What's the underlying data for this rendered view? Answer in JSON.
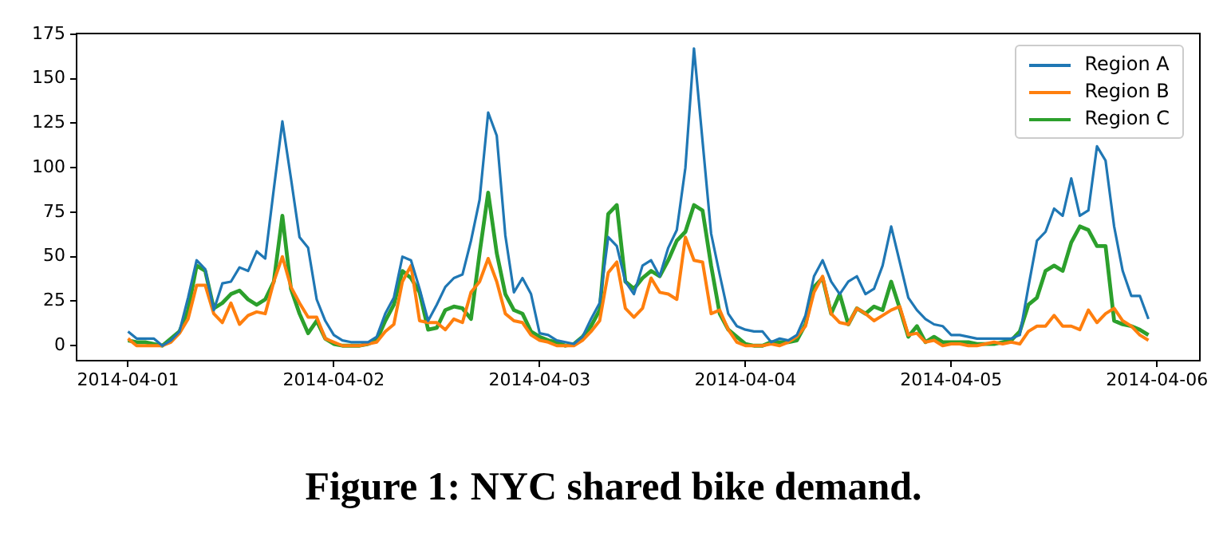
{
  "chart_data": {
    "type": "line",
    "annotations": [
      "Figure 1: NYC shared bike demand."
    ],
    "x": [
      "2014-04-01T00:00",
      "2014-04-01T01:00",
      "2014-04-01T02:00",
      "2014-04-01T03:00",
      "2014-04-01T04:00",
      "2014-04-01T05:00",
      "2014-04-01T06:00",
      "2014-04-01T07:00",
      "2014-04-01T08:00",
      "2014-04-01T09:00",
      "2014-04-01T10:00",
      "2014-04-01T11:00",
      "2014-04-01T12:00",
      "2014-04-01T13:00",
      "2014-04-01T14:00",
      "2014-04-01T15:00",
      "2014-04-01T16:00",
      "2014-04-01T17:00",
      "2014-04-01T18:00",
      "2014-04-01T19:00",
      "2014-04-01T20:00",
      "2014-04-01T21:00",
      "2014-04-01T22:00",
      "2014-04-01T23:00",
      "2014-04-02T00:00",
      "2014-04-02T01:00",
      "2014-04-02T02:00",
      "2014-04-02T03:00",
      "2014-04-02T04:00",
      "2014-04-02T05:00",
      "2014-04-02T06:00",
      "2014-04-02T07:00",
      "2014-04-02T08:00",
      "2014-04-02T09:00",
      "2014-04-02T10:00",
      "2014-04-02T11:00",
      "2014-04-02T12:00",
      "2014-04-02T13:00",
      "2014-04-02T14:00",
      "2014-04-02T15:00",
      "2014-04-02T16:00",
      "2014-04-02T17:00",
      "2014-04-02T18:00",
      "2014-04-02T19:00",
      "2014-04-02T20:00",
      "2014-04-02T21:00",
      "2014-04-02T22:00",
      "2014-04-02T23:00",
      "2014-04-03T00:00",
      "2014-04-03T01:00",
      "2014-04-03T02:00",
      "2014-04-03T03:00",
      "2014-04-03T04:00",
      "2014-04-03T05:00",
      "2014-04-03T06:00",
      "2014-04-03T07:00",
      "2014-04-03T08:00",
      "2014-04-03T09:00",
      "2014-04-03T10:00",
      "2014-04-03T11:00",
      "2014-04-03T12:00",
      "2014-04-03T13:00",
      "2014-04-03T14:00",
      "2014-04-03T15:00",
      "2014-04-03T16:00",
      "2014-04-03T17:00",
      "2014-04-03T18:00",
      "2014-04-03T19:00",
      "2014-04-03T20:00",
      "2014-04-03T21:00",
      "2014-04-03T22:00",
      "2014-04-03T23:00",
      "2014-04-04T00:00",
      "2014-04-04T01:00",
      "2014-04-04T02:00",
      "2014-04-04T03:00",
      "2014-04-04T04:00",
      "2014-04-04T05:00",
      "2014-04-04T06:00",
      "2014-04-04T07:00",
      "2014-04-04T08:00",
      "2014-04-04T09:00",
      "2014-04-04T10:00",
      "2014-04-04T11:00",
      "2014-04-04T12:00",
      "2014-04-04T13:00",
      "2014-04-04T14:00",
      "2014-04-04T15:00",
      "2014-04-04T16:00",
      "2014-04-04T17:00",
      "2014-04-04T18:00",
      "2014-04-04T19:00",
      "2014-04-04T20:00",
      "2014-04-04T21:00",
      "2014-04-04T22:00",
      "2014-04-04T23:00",
      "2014-04-05T00:00",
      "2014-04-05T01:00",
      "2014-04-05T02:00",
      "2014-04-05T03:00",
      "2014-04-05T04:00",
      "2014-04-05T05:00",
      "2014-04-05T06:00",
      "2014-04-05T07:00",
      "2014-04-05T08:00",
      "2014-04-05T09:00",
      "2014-04-05T10:00",
      "2014-04-05T11:00",
      "2014-04-05T12:00",
      "2014-04-05T13:00",
      "2014-04-05T14:00",
      "2014-04-05T15:00",
      "2014-04-05T16:00",
      "2014-04-05T17:00",
      "2014-04-05T18:00",
      "2014-04-05T19:00",
      "2014-04-05T20:00",
      "2014-04-05T21:00",
      "2014-04-05T22:00",
      "2014-04-05T23:00"
    ],
    "series": [
      {
        "name": "Region A",
        "color": "#1f77b4",
        "values": [
          8,
          4,
          4,
          4,
          0,
          3,
          8,
          27,
          48,
          43,
          20,
          35,
          36,
          44,
          42,
          53,
          49,
          88,
          126,
          94,
          61,
          55,
          26,
          14,
          6,
          3,
          2,
          2,
          2,
          5,
          18,
          27,
          50,
          48,
          32,
          14,
          23,
          33,
          38,
          40,
          59,
          82,
          131,
          118,
          62,
          30,
          38,
          29,
          7,
          6,
          3,
          2,
          1,
          5,
          15,
          24,
          61,
          56,
          36,
          29,
          45,
          48,
          39,
          55,
          65,
          100,
          167,
          115,
          63,
          40,
          18,
          11,
          9,
          8,
          8,
          2,
          4,
          3,
          6,
          17,
          39,
          48,
          36,
          29,
          36,
          39,
          29,
          32,
          45,
          67,
          47,
          27,
          20,
          15,
          12,
          11,
          6,
          6,
          5,
          4,
          4,
          4,
          4,
          4,
          6,
          33,
          59,
          64,
          77,
          73,
          94,
          73,
          76,
          112,
          104,
          67,
          42,
          28,
          28,
          15
        ]
      },
      {
        "name": "Region B",
        "color": "#ff7f0e",
        "values": [
          4,
          0,
          0,
          0,
          0,
          2,
          7,
          15,
          34,
          34,
          18,
          13,
          24,
          12,
          17,
          19,
          18,
          36,
          50,
          33,
          24,
          16,
          16,
          4,
          2,
          0,
          0,
          0,
          1,
          2,
          8,
          12,
          36,
          45,
          14,
          13,
          13,
          9,
          15,
          13,
          30,
          36,
          49,
          36,
          18,
          14,
          13,
          6,
          3,
          2,
          0,
          0,
          0,
          3,
          8,
          14,
          41,
          47,
          21,
          16,
          21,
          38,
          30,
          29,
          26,
          61,
          48,
          47,
          18,
          20,
          9,
          2,
          0,
          0,
          0,
          1,
          0,
          2,
          5,
          11,
          30,
          39,
          18,
          13,
          12,
          21,
          18,
          14,
          17,
          20,
          22,
          6,
          7,
          2,
          3,
          0,
          1,
          1,
          0,
          0,
          1,
          2,
          1,
          2,
          1,
          8,
          11,
          11,
          17,
          11,
          11,
          9,
          20,
          13,
          18,
          21,
          14,
          11,
          6,
          3
        ]
      },
      {
        "name": "Region C",
        "color": "#2ca02c",
        "values": [
          3,
          2,
          2,
          1,
          0,
          4,
          8,
          20,
          45,
          42,
          21,
          24,
          29,
          31,
          26,
          23,
          26,
          36,
          73,
          32,
          18,
          7,
          14,
          4,
          1,
          0,
          0,
          0,
          1,
          3,
          14,
          23,
          42,
          38,
          30,
          9,
          10,
          20,
          22,
          21,
          15,
          52,
          86,
          52,
          29,
          20,
          18,
          8,
          5,
          3,
          2,
          0,
          1,
          5,
          11,
          20,
          74,
          79,
          36,
          32,
          38,
          42,
          39,
          48,
          59,
          64,
          79,
          76,
          45,
          18,
          9,
          5,
          1,
          0,
          0,
          2,
          2,
          2,
          3,
          12,
          33,
          38,
          18,
          29,
          12,
          21,
          18,
          22,
          20,
          36,
          21,
          5,
          11,
          2,
          5,
          2,
          2,
          2,
          2,
          1,
          1,
          1,
          2,
          3,
          8,
          23,
          27,
          42,
          45,
          42,
          58,
          67,
          65,
          56,
          56,
          14,
          12,
          11,
          9,
          6
        ]
      }
    ],
    "xlim": [
      "2014-03-31T18:00",
      "2014-04-06T05:00"
    ],
    "xticks": [
      "2014-04-01",
      "2014-04-02",
      "2014-04-03",
      "2014-04-04",
      "2014-04-05",
      "2014-04-06"
    ],
    "ylim": [
      -8.4,
      175.4
    ],
    "yticks": [
      0,
      25,
      50,
      75,
      100,
      125,
      150,
      175
    ],
    "grid": false,
    "legend": "top right",
    "marker": "none",
    "line_style": "solid"
  }
}
